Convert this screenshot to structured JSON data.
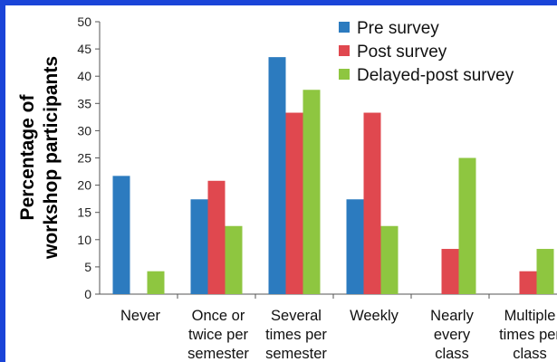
{
  "chart_data": {
    "type": "bar",
    "title": "",
    "xlabel": "",
    "ylabel": [
      "Percentage of",
      "workshop participants"
    ],
    "ylim": [
      0,
      50
    ],
    "yticks": [
      0,
      5,
      10,
      15,
      20,
      25,
      30,
      35,
      40,
      45,
      50
    ],
    "grid": false,
    "legend_position": "top-right",
    "categories": [
      [
        "Never"
      ],
      [
        "Once or",
        "twice per",
        "semester"
      ],
      [
        "Several",
        "times per",
        "semester"
      ],
      [
        "Weekly"
      ],
      [
        "Nearly",
        "every",
        "class"
      ],
      [
        "Multiple",
        "times per",
        "class"
      ]
    ],
    "series": [
      {
        "name": "Pre survey",
        "color": "#2c7bbf",
        "values": [
          21.7,
          17.4,
          43.5,
          17.4,
          0,
          0
        ]
      },
      {
        "name": "Post survey",
        "color": "#e0484f",
        "values": [
          0,
          20.8,
          33.3,
          33.3,
          8.3,
          4.2
        ]
      },
      {
        "name": "Delayed-post survey",
        "color": "#8ec640",
        "values": [
          4.2,
          12.5,
          37.5,
          12.5,
          25,
          8.3
        ]
      }
    ]
  }
}
